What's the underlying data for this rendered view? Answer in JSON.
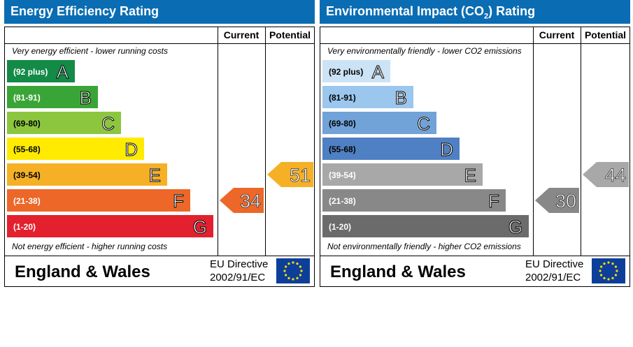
{
  "charts": [
    {
      "title": "Energy Efficiency Rating",
      "subscript": "",
      "title_suffix": "",
      "current_label": "Current",
      "potential_label": "Potential",
      "top_note": "Very energy efficient - lower running costs",
      "bottom_note": "Not energy efficient - higher running costs",
      "footer_left": "England & Wales",
      "footer_directive_1": "EU Directive",
      "footer_directive_2": "2002/91/EC",
      "colors": [
        "#138a46",
        "#3aa537",
        "#8cc63f",
        "#ffeb00",
        "#f6b026",
        "#ec6728",
        "#e2202e"
      ],
      "text_colors": [
        "#ffffff",
        "#ffffff",
        "#000000",
        "#000000",
        "#000000",
        "#ffffff",
        "#ffffff"
      ],
      "current_color": "#ec6728",
      "potential_color": "#f6b026"
    },
    {
      "title": "Environmental Impact (CO",
      "subscript": "2",
      "title_suffix": ") Rating",
      "current_label": "Current",
      "potential_label": "Potential",
      "top_note": "Very environmentally friendly - lower CO2 emissions",
      "bottom_note": "Not environmentally friendly - higher CO2 emissions",
      "footer_left": "England & Wales",
      "footer_directive_1": "EU Directive",
      "footer_directive_2": "2002/91/EC",
      "colors": [
        "#cce3f5",
        "#9bc6ee",
        "#71a2d8",
        "#4f80c3",
        "#a8a8a8",
        "#888888",
        "#6b6b6b"
      ],
      "text_colors": [
        "#000000",
        "#000000",
        "#000000",
        "#000000",
        "#ffffff",
        "#ffffff",
        "#ffffff"
      ],
      "current_color": "#888888",
      "potential_color": "#a8a8a8"
    }
  ],
  "chart_data": [
    {
      "type": "bar",
      "title": "Energy Efficiency Rating",
      "categories": [
        "(92 plus)",
        "(81-91)",
        "(69-80)",
        "(55-68)",
        "(39-54)",
        "(21-38)",
        "(1-20)"
      ],
      "letters": [
        "A",
        "B",
        "C",
        "D",
        "E",
        "F",
        "G"
      ],
      "current": 34,
      "potential": 51,
      "current_band": 5,
      "potential_band": 4
    },
    {
      "type": "bar",
      "title": "Environmental Impact (CO2) Rating",
      "categories": [
        "(92 plus)",
        "(81-91)",
        "(69-80)",
        "(55-68)",
        "(39-54)",
        "(21-38)",
        "(1-20)"
      ],
      "letters": [
        "A",
        "B",
        "C",
        "D",
        "E",
        "F",
        "G"
      ],
      "current": 30,
      "potential": 44,
      "current_band": 5,
      "potential_band": 4
    }
  ]
}
